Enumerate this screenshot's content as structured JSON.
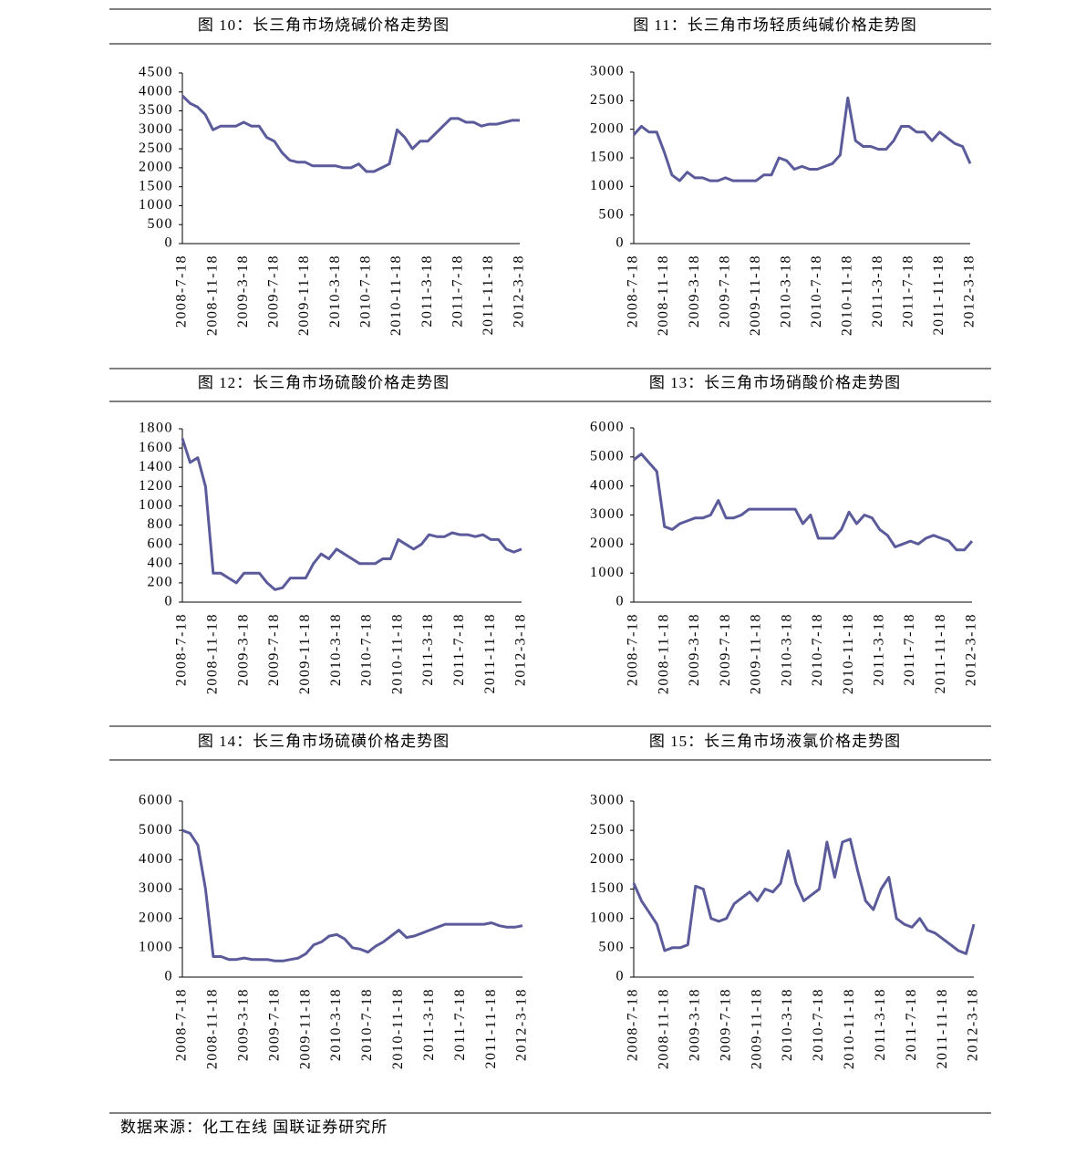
{
  "source": "数据来源：化工在线 国联证券研究所",
  "chart_data": [
    {
      "type": "line",
      "title": "图 10：长三角市场烧碱价格走势图",
      "categories": [
        "2008-7-18",
        null,
        null,
        null,
        "2008-11-18",
        null,
        null,
        null,
        "2009-3-18",
        null,
        null,
        null,
        "2009-7-18",
        null,
        null,
        null,
        "2009-11-18",
        null,
        null,
        null,
        "2010-3-18",
        null,
        null,
        null,
        "2010-7-18",
        null,
        null,
        null,
        "2010-11-18",
        null,
        null,
        null,
        "2011-3-18",
        null,
        null,
        null,
        "2011-7-18",
        null,
        null,
        null,
        "2011-11-18",
        null,
        null,
        null,
        "2012-3-18"
      ],
      "values": [
        3900,
        3700,
        3600,
        3400,
        3000,
        3100,
        3100,
        3100,
        3200,
        3100,
        3100,
        2800,
        2700,
        2400,
        2200,
        2150,
        2150,
        2050,
        2050,
        2050,
        2050,
        2000,
        2000,
        2100,
        1900,
        1900,
        2000,
        2100,
        3000,
        2800,
        2500,
        2700,
        2700,
        2900,
        3100,
        3300,
        3300,
        3200,
        3200,
        3100,
        3150,
        3150,
        3200,
        3250,
        3250
      ],
      "color": "#5b5b9b",
      "ylim": [
        0,
        4500
      ],
      "yticks": [
        0,
        500,
        1000,
        1500,
        2000,
        2500,
        3000,
        3500,
        4000,
        4500
      ]
    },
    {
      "type": "line",
      "title": "图 11：长三角市场轻质纯碱价格走势图",
      "categories": [
        "2008-7-18",
        null,
        null,
        null,
        "2008-11-18",
        null,
        null,
        null,
        "2009-3-18",
        null,
        null,
        null,
        "2009-7-18",
        null,
        null,
        null,
        "2009-11-18",
        null,
        null,
        null,
        "2010-3-18",
        null,
        null,
        null,
        "2010-7-18",
        null,
        null,
        null,
        "2010-11-18",
        null,
        null,
        null,
        "2011-3-18",
        null,
        null,
        null,
        "2011-7-18",
        null,
        null,
        null,
        "2011-11-18",
        null,
        null,
        null,
        "2012-3-18"
      ],
      "values": [
        1900,
        2050,
        1950,
        1950,
        1600,
        1200,
        1100,
        1250,
        1150,
        1150,
        1100,
        1100,
        1150,
        1100,
        1100,
        1100,
        1100,
        1200,
        1200,
        1500,
        1450,
        1300,
        1350,
        1300,
        1300,
        1350,
        1400,
        1550,
        2550,
        1800,
        1700,
        1700,
        1650,
        1650,
        1800,
        2050,
        2050,
        1950,
        1950,
        1800,
        1950,
        1850,
        1750,
        1700,
        1400
      ],
      "color": "#5b5b9b",
      "ylim": [
        0,
        3000
      ],
      "yticks": [
        0,
        500,
        1000,
        1500,
        2000,
        2500,
        3000
      ]
    },
    {
      "type": "line",
      "title": "图 12：长三角市场硫酸价格走势图",
      "categories": [
        "2008-7-18",
        null,
        null,
        null,
        "2008-11-18",
        null,
        null,
        null,
        "2009-3-18",
        null,
        null,
        null,
        "2009-7-18",
        null,
        null,
        null,
        "2009-11-18",
        null,
        null,
        null,
        "2010-3-18",
        null,
        null,
        null,
        "2010-7-18",
        null,
        null,
        null,
        "2010-11-18",
        null,
        null,
        null,
        "2011-3-18",
        null,
        null,
        null,
        "2011-7-18",
        null,
        null,
        null,
        "2011-11-18",
        null,
        null,
        null,
        "2012-3-18"
      ],
      "values": [
        1700,
        1450,
        1500,
        1200,
        300,
        300,
        250,
        200,
        300,
        300,
        300,
        200,
        130,
        150,
        250,
        250,
        250,
        400,
        500,
        450,
        550,
        500,
        450,
        400,
        400,
        400,
        450,
        450,
        650,
        600,
        550,
        600,
        700,
        680,
        680,
        720,
        700,
        700,
        680,
        700,
        650,
        650,
        550,
        520,
        550
      ],
      "color": "#5b5b9b",
      "ylim": [
        0,
        1800
      ],
      "yticks": [
        0,
        200,
        400,
        600,
        800,
        1000,
        1200,
        1400,
        1600,
        1800
      ]
    },
    {
      "type": "line",
      "title": "图 13：长三角市场硝酸价格走势图",
      "categories": [
        "2008-7-18",
        null,
        null,
        null,
        "2008-11-18",
        null,
        null,
        null,
        "2009-3-18",
        null,
        null,
        null,
        "2009-7-18",
        null,
        null,
        null,
        "2009-11-18",
        null,
        null,
        null,
        "2010-3-18",
        null,
        null,
        null,
        "2010-7-18",
        null,
        null,
        null,
        "2010-11-18",
        null,
        null,
        null,
        "2011-3-18",
        null,
        null,
        null,
        "2011-7-18",
        null,
        null,
        null,
        "2011-11-18",
        null,
        null,
        null,
        "2012-3-18"
      ],
      "values": [
        4900,
        5100,
        4800,
        4500,
        2600,
        2500,
        2700,
        2800,
        2900,
        2900,
        3000,
        3500,
        2900,
        2900,
        3000,
        3200,
        3200,
        3200,
        3200,
        3200,
        3200,
        3200,
        2700,
        3000,
        2200,
        2200,
        2200,
        2500,
        3100,
        2700,
        3000,
        2900,
        2500,
        2300,
        1900,
        2000,
        2100,
        2000,
        2200,
        2300,
        2200,
        2100,
        1800,
        1800,
        2100
      ],
      "color": "#5b5b9b",
      "ylim": [
        0,
        6000
      ],
      "yticks": [
        0,
        1000,
        2000,
        3000,
        4000,
        5000,
        6000
      ]
    },
    {
      "type": "line",
      "title": "图 14：长三角市场硫磺价格走势图",
      "categories": [
        "2008-7-18",
        null,
        null,
        null,
        "2008-11-18",
        null,
        null,
        null,
        "2009-3-18",
        null,
        null,
        null,
        "2009-7-18",
        null,
        null,
        null,
        "2009-11-18",
        null,
        null,
        null,
        "2010-3-18",
        null,
        null,
        null,
        "2010-7-18",
        null,
        null,
        null,
        "2010-11-18",
        null,
        null,
        null,
        "2011-3-18",
        null,
        null,
        null,
        "2011-7-18",
        null,
        null,
        null,
        "2011-11-18",
        null,
        null,
        null,
        "2012-3-18"
      ],
      "values": [
        5000,
        4900,
        4500,
        3000,
        700,
        700,
        600,
        600,
        650,
        600,
        600,
        600,
        550,
        550,
        600,
        650,
        800,
        1100,
        1200,
        1400,
        1450,
        1300,
        1000,
        950,
        850,
        1050,
        1200,
        1400,
        1600,
        1350,
        1400,
        1500,
        1600,
        1700,
        1800,
        1800,
        1800,
        1800,
        1800,
        1800,
        1850,
        1750,
        1700,
        1700,
        1750
      ],
      "color": "#5b5b9b",
      "ylim": [
        0,
        6000
      ],
      "yticks": [
        0,
        1000,
        2000,
        3000,
        4000,
        5000,
        6000
      ]
    },
    {
      "type": "line",
      "title": "图 15：长三角市场液氯价格走势图",
      "categories": [
        "2008-7-18",
        null,
        null,
        null,
        "2008-11-18",
        null,
        null,
        null,
        "2009-3-18",
        null,
        null,
        null,
        "2009-7-18",
        null,
        null,
        null,
        "2009-11-18",
        null,
        null,
        null,
        "2010-3-18",
        null,
        null,
        null,
        "2010-7-18",
        null,
        null,
        null,
        "2010-11-18",
        null,
        null,
        null,
        "2011-3-18",
        null,
        null,
        null,
        "2011-7-18",
        null,
        null,
        null,
        "2011-11-18",
        null,
        null,
        null,
        "2012-3-18"
      ],
      "values": [
        1600,
        1300,
        1100,
        900,
        450,
        500,
        500,
        550,
        1550,
        1500,
        1000,
        950,
        1000,
        1250,
        1350,
        1450,
        1300,
        1500,
        1450,
        1600,
        2150,
        1600,
        1300,
        1400,
        1500,
        2300,
        1700,
        2300,
        2350,
        1800,
        1300,
        1150,
        1500,
        1700,
        1000,
        900,
        850,
        1000,
        800,
        750,
        650,
        550,
        450,
        400,
        900
      ],
      "color": "#5b5b9b",
      "ylim": [
        0,
        3000
      ],
      "yticks": [
        0,
        500,
        1000,
        1500,
        2000,
        2500,
        3000
      ]
    }
  ]
}
